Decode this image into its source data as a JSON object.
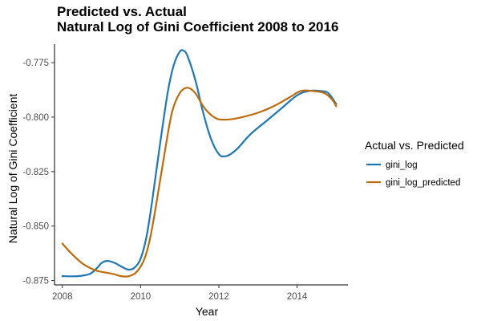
{
  "chart_data": {
    "type": "line",
    "title": "Predicted vs. Actual",
    "subtitle": "Natural Log of Gini Coefficient 2008 to 2016",
    "xlabel": "Year",
    "ylabel": "Natural Log of Gini Coefficient",
    "xlim": [
      2007.8,
      2015.3
    ],
    "ylim": [
      -0.877,
      -0.7665
    ],
    "x_ticks": [
      2008,
      2010,
      2012,
      2014
    ],
    "y_ticks": [
      -0.875,
      -0.85,
      -0.825,
      -0.8,
      -0.775
    ],
    "y_tick_labels": [
      "-0.875",
      "-0.850",
      "-0.825",
      "-0.800",
      "-0.775"
    ],
    "grid": false,
    "legend": {
      "title": "Actual vs. Predicted",
      "position": "right"
    },
    "series": [
      {
        "name": "gini_log",
        "color": "#1f77b4",
        "points": [
          [
            2008.0,
            -0.873
          ],
          [
            2008.4,
            -0.873
          ],
          [
            2008.7,
            -0.872
          ],
          [
            2008.9,
            -0.869
          ],
          [
            2009.0,
            -0.867
          ],
          [
            2009.15,
            -0.866
          ],
          [
            2009.35,
            -0.867
          ],
          [
            2009.55,
            -0.869
          ],
          [
            2009.7,
            -0.87
          ],
          [
            2009.85,
            -0.869
          ],
          [
            2010.0,
            -0.865
          ],
          [
            2010.15,
            -0.855
          ],
          [
            2010.3,
            -0.838
          ],
          [
            2010.5,
            -0.812
          ],
          [
            2010.7,
            -0.788
          ],
          [
            2010.85,
            -0.776
          ],
          [
            2011.0,
            -0.77
          ],
          [
            2011.1,
            -0.7695
          ],
          [
            2011.2,
            -0.772
          ],
          [
            2011.4,
            -0.783
          ],
          [
            2011.6,
            -0.798
          ],
          [
            2011.8,
            -0.81
          ],
          [
            2012.0,
            -0.817
          ],
          [
            2012.15,
            -0.818
          ],
          [
            2012.3,
            -0.817
          ],
          [
            2012.5,
            -0.814
          ],
          [
            2012.8,
            -0.808
          ],
          [
            2013.2,
            -0.802
          ],
          [
            2013.6,
            -0.796
          ],
          [
            2014.0,
            -0.79
          ],
          [
            2014.3,
            -0.788
          ],
          [
            2014.6,
            -0.788
          ],
          [
            2014.8,
            -0.789
          ],
          [
            2015.0,
            -0.794
          ]
        ]
      },
      {
        "name": "gini_log_predicted",
        "color": "#bd6b0d",
        "points": [
          [
            2008.0,
            -0.858
          ],
          [
            2008.2,
            -0.862
          ],
          [
            2008.5,
            -0.867
          ],
          [
            2008.8,
            -0.87
          ],
          [
            2009.0,
            -0.871
          ],
          [
            2009.3,
            -0.872
          ],
          [
            2009.5,
            -0.873
          ],
          [
            2009.7,
            -0.873
          ],
          [
            2009.9,
            -0.871
          ],
          [
            2010.1,
            -0.865
          ],
          [
            2010.25,
            -0.855
          ],
          [
            2010.4,
            -0.84
          ],
          [
            2010.6,
            -0.818
          ],
          [
            2010.8,
            -0.798
          ],
          [
            2011.0,
            -0.789
          ],
          [
            2011.2,
            -0.7865
          ],
          [
            2011.4,
            -0.789
          ],
          [
            2011.6,
            -0.795
          ],
          [
            2011.8,
            -0.799
          ],
          [
            2012.0,
            -0.801
          ],
          [
            2012.3,
            -0.801
          ],
          [
            2012.6,
            -0.8
          ],
          [
            2013.0,
            -0.798
          ],
          [
            2013.4,
            -0.795
          ],
          [
            2013.8,
            -0.791
          ],
          [
            2014.1,
            -0.788
          ],
          [
            2014.4,
            -0.788
          ],
          [
            2014.7,
            -0.789
          ],
          [
            2014.9,
            -0.792
          ],
          [
            2015.0,
            -0.795
          ]
        ]
      }
    ]
  }
}
